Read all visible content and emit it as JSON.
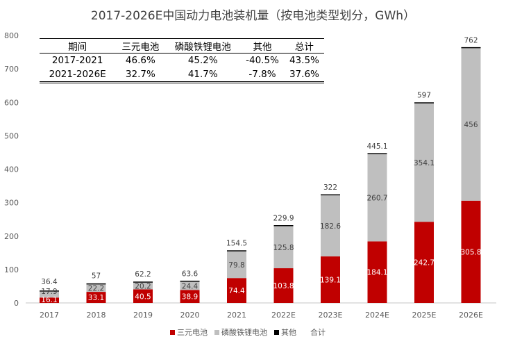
{
  "chart_data": {
    "type": "bar",
    "stacked": true,
    "title": "2017-2026E中国动力电池装机量（按电池类型划分，GWh）",
    "categories": [
      "2017",
      "2018",
      "2019",
      "2020",
      "2021",
      "2022E",
      "2023E",
      "2024E",
      "2025E",
      "2026E"
    ],
    "ylim": [
      0,
      800
    ],
    "yticks": [
      0,
      100,
      200,
      300,
      400,
      500,
      600,
      700,
      800
    ],
    "grid": false,
    "legend_position": "bottom",
    "series": [
      {
        "name": "三元电池",
        "color": "#C00000",
        "values": [
          16.1,
          33.1,
          40.5,
          38.9,
          74.4,
          103.8,
          139.1,
          184.1,
          242.7,
          305.8
        ]
      },
      {
        "name": "磷酸铁锂电池",
        "color": "#BFBFBF",
        "values": [
          17.9,
          22.2,
          20.2,
          24.4,
          79.8,
          125.8,
          182.6,
          260.7,
          354.1,
          456
        ]
      },
      {
        "name": "其他",
        "color": "#000000",
        "values": [
          2.4,
          1.7,
          1.5,
          0.3,
          0.3,
          0.3,
          0.3,
          0.3,
          0.2,
          0.2
        ]
      }
    ],
    "totals_name": "合计",
    "totals": [
      36.4,
      57,
      62.2,
      63.6,
      154.5,
      229.9,
      322,
      445.1,
      597,
      762
    ]
  },
  "table": {
    "headers": [
      "期间",
      "三元电池",
      "磷酸铁锂电池",
      "其他",
      "总计"
    ],
    "rows": [
      [
        "2017-2021",
        "46.6%",
        "45.2%",
        "-40.5%",
        "43.5%"
      ],
      [
        "2021-2026E",
        "32.7%",
        "41.7%",
        "-7.8%",
        "37.6%"
      ]
    ]
  }
}
